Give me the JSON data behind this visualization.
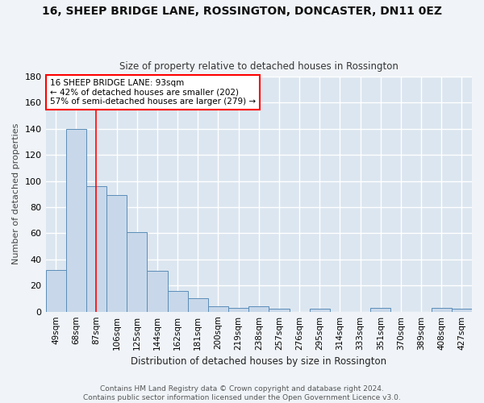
{
  "title": "16, SHEEP BRIDGE LANE, ROSSINGTON, DONCASTER, DN11 0EZ",
  "subtitle": "Size of property relative to detached houses in Rossington",
  "xlabel": "Distribution of detached houses by size in Rossington",
  "ylabel": "Number of detached properties",
  "bar_color": "#c8d8ea",
  "bar_edge_color": "#5b8db8",
  "background_color": "#dce6f0",
  "axes_background": "#dce6f0",
  "grid_color": "#ffffff",
  "figure_background": "#f0f4f8",
  "categories": [
    "49sqm",
    "68sqm",
    "87sqm",
    "106sqm",
    "125sqm",
    "144sqm",
    "162sqm",
    "181sqm",
    "200sqm",
    "219sqm",
    "238sqm",
    "257sqm",
    "276sqm",
    "295sqm",
    "314sqm",
    "333sqm",
    "351sqm",
    "370sqm",
    "389sqm",
    "408sqm",
    "427sqm"
  ],
  "values": [
    32,
    140,
    96,
    89,
    61,
    31,
    16,
    10,
    4,
    3,
    4,
    2,
    0,
    2,
    0,
    0,
    3,
    0,
    0,
    3,
    2
  ],
  "ylim": [
    0,
    180
  ],
  "yticks": [
    0,
    20,
    40,
    60,
    80,
    100,
    120,
    140,
    160,
    180
  ],
  "red_line_x": 2.0,
  "annotation_title": "16 SHEEP BRIDGE LANE: 93sqm",
  "annotation_line1": "← 42% of detached houses are smaller (202)",
  "annotation_line2": "57% of semi-detached houses are larger (279) →",
  "footer": "Contains HM Land Registry data © Crown copyright and database right 2024.\nContains public sector information licensed under the Open Government Licence v3.0."
}
